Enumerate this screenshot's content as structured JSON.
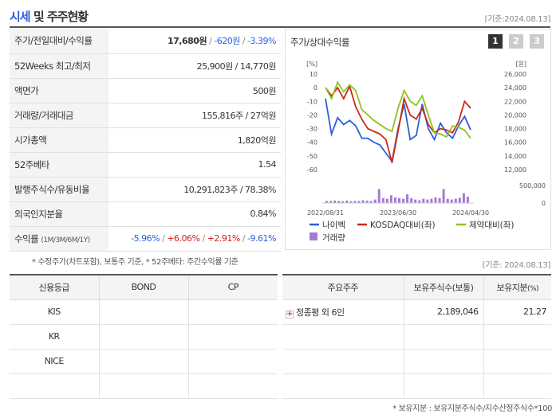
{
  "header": {
    "title_blue": "시세",
    "title_rest": " 및 주주현황",
    "date": "[기준:2024.08.13]"
  },
  "info_rows": [
    {
      "label": "주가/전일대비/수익률",
      "price": "17,680원",
      "change": "-620원",
      "rate": "-3.39%"
    },
    {
      "label": "52Weeks 최고/최저",
      "value": "25,900원 / 14,770원"
    },
    {
      "label": "액면가",
      "value": "500원"
    },
    {
      "label": "거래량/거래대금",
      "value": "155,816주 / 27억원"
    },
    {
      "label": "시가총액",
      "value": "1,820억원"
    },
    {
      "label": "52주베타",
      "value": "1.54"
    },
    {
      "label": "발행주식수/유동비율",
      "value": "10,291,823주 / 78.38%"
    },
    {
      "label": "외국인지분율",
      "value": "0.84%"
    },
    {
      "label": "수익률",
      "label_sub": "(1M/3M/6M/1Y)",
      "r1": "-5.96%",
      "r2": "+6.06%",
      "r3": "+2.91%",
      "r4": "-9.61%"
    }
  ],
  "note1": "* 수정주가(차트포함), 보통주 기준, * 52주베타: 주간수익률 기준",
  "chart": {
    "title": "주가/상대수익률",
    "periods": [
      "1",
      "2",
      "3"
    ]
  },
  "chart_data": {
    "type": "line",
    "yunit_left": "[%]",
    "yunit_right": "[원]",
    "yticks_left": [
      "10",
      "0",
      "-10",
      "-20",
      "-30",
      "-40",
      "-50",
      "-60"
    ],
    "yticks_right": [
      "26,000",
      "24,000",
      "22,000",
      "20,000",
      "18,000",
      "16,000",
      "14,000",
      "12,000"
    ],
    "vol_ticks": [
      "500,000",
      "0"
    ],
    "ylim": [
      -60,
      10
    ],
    "x_labels": [
      "2022/08/31",
      "2023/06/30",
      "2024/04/30"
    ],
    "x_label_pos": [
      0,
      0.5,
      1
    ],
    "series": [
      {
        "name": "나이벡",
        "color": "#2b5fd9",
        "values": [
          -8,
          -34,
          -22,
          -27,
          -24,
          -28,
          -37,
          -37,
          -40,
          -42,
          -48,
          -54,
          -30,
          -12,
          -38,
          -35,
          -12,
          -30,
          -38,
          -26,
          -33,
          -37,
          -28,
          -21,
          -31
        ]
      },
      {
        "name": "KOSDAQ대비(좌)",
        "color": "#cc2a12",
        "values": [
          0,
          -6,
          0,
          -8,
          1,
          -14,
          -23,
          -30,
          -32,
          -34,
          -38,
          -55,
          -32,
          -8,
          -20,
          -23,
          -15,
          -27,
          -33,
          -30,
          -31,
          -33,
          -25,
          -10,
          -15
        ]
      },
      {
        "name": "제약대비(좌)",
        "color": "#8dc21f",
        "values": [
          0,
          -8,
          4,
          -3,
          2,
          -2,
          -16,
          -20,
          -24,
          -27,
          -30,
          -32,
          -15,
          -2,
          -10,
          -13,
          -6,
          -20,
          -33,
          -34,
          -36,
          -28,
          -29,
          -31,
          -37
        ]
      }
    ],
    "volume": {
      "name": "거래량",
      "color": "#a57ad6",
      "values": [
        6,
        6,
        7,
        6,
        5,
        7,
        5,
        6,
        6,
        8,
        7,
        6,
        10,
        40,
        14,
        12,
        22,
        16,
        14,
        12,
        25,
        14,
        10,
        8,
        12,
        10,
        12,
        16,
        14,
        40,
        12,
        10,
        12,
        15,
        28,
        18
      ]
    }
  },
  "date2": "[기준: 2024.08.13]",
  "credit": {
    "headers": [
      "신용등급",
      "BOND",
      "CP"
    ],
    "rows": [
      [
        "KIS",
        "",
        ""
      ],
      [
        "KR",
        "",
        ""
      ],
      [
        "NICE",
        "",
        ""
      ],
      [
        "",
        "",
        ""
      ]
    ]
  },
  "holders": {
    "headers": [
      "주요주주",
      "보유주식수(보통)",
      "보유지분(%)"
    ],
    "rows": [
      {
        "name": "정종평 외 6인",
        "shares": "2,189,046",
        "pct": "21.27"
      }
    ]
  },
  "note2": "* 보유지분 : 보유지분주식수/지수산정주식수*100"
}
